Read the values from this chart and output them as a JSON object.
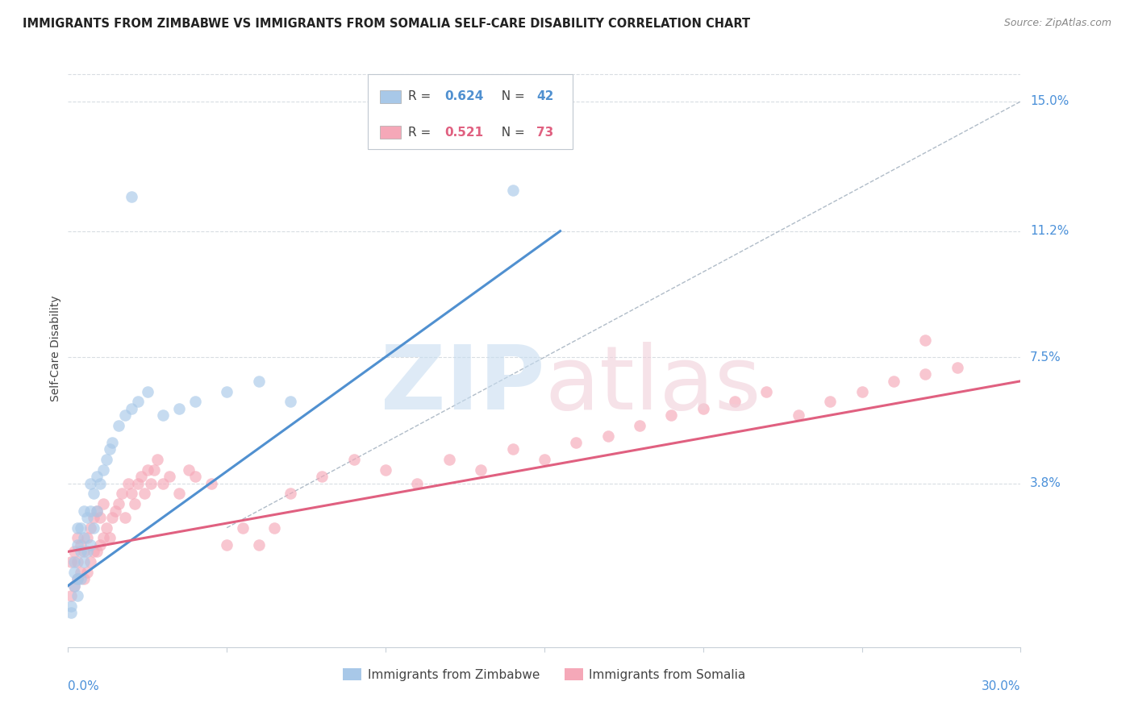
{
  "title": "IMMIGRANTS FROM ZIMBABWE VS IMMIGRANTS FROM SOMALIA SELF-CARE DISABILITY CORRELATION CHART",
  "source": "Source: ZipAtlas.com",
  "ylabel": "Self-Care Disability",
  "ytick_labels": [
    "3.8%",
    "7.5%",
    "11.2%",
    "15.0%"
  ],
  "ytick_values": [
    0.038,
    0.075,
    0.112,
    0.15
  ],
  "xlim": [
    0.0,
    0.3
  ],
  "ylim": [
    -0.01,
    0.165
  ],
  "zimbabwe_R": 0.624,
  "zimbabwe_N": 42,
  "somalia_R": 0.521,
  "somalia_N": 73,
  "zimbabwe_color": "#a8c8e8",
  "somalia_color": "#f5a8b8",
  "zimbabwe_line_color": "#5090d0",
  "somalia_line_color": "#e06080",
  "ref_line_color": "#b0bcc8",
  "background_color": "#ffffff",
  "grid_color": "#d8dde2",
  "title_color": "#222222",
  "source_color": "#888888",
  "axis_label_color": "#4a90d9",
  "zimbabwe_x": [
    0.001,
    0.001,
    0.002,
    0.002,
    0.002,
    0.003,
    0.003,
    0.003,
    0.003,
    0.004,
    0.004,
    0.004,
    0.005,
    0.005,
    0.005,
    0.006,
    0.006,
    0.007,
    0.007,
    0.007,
    0.008,
    0.008,
    0.009,
    0.009,
    0.01,
    0.011,
    0.012,
    0.013,
    0.014,
    0.016,
    0.018,
    0.02,
    0.022,
    0.025,
    0.03,
    0.035,
    0.04,
    0.05,
    0.06,
    0.07,
    0.02,
    0.14
  ],
  "zimbabwe_y": [
    0.0,
    0.002,
    0.008,
    0.012,
    0.015,
    0.005,
    0.01,
    0.02,
    0.025,
    0.01,
    0.018,
    0.025,
    0.015,
    0.022,
    0.03,
    0.018,
    0.028,
    0.02,
    0.03,
    0.038,
    0.025,
    0.035,
    0.03,
    0.04,
    0.038,
    0.042,
    0.045,
    0.048,
    0.05,
    0.055,
    0.058,
    0.06,
    0.062,
    0.065,
    0.058,
    0.06,
    0.062,
    0.065,
    0.068,
    0.062,
    0.122,
    0.124
  ],
  "somalia_x": [
    0.001,
    0.001,
    0.002,
    0.002,
    0.003,
    0.003,
    0.003,
    0.004,
    0.004,
    0.005,
    0.005,
    0.006,
    0.006,
    0.007,
    0.007,
    0.008,
    0.008,
    0.009,
    0.009,
    0.01,
    0.01,
    0.011,
    0.011,
    0.012,
    0.013,
    0.014,
    0.015,
    0.016,
    0.017,
    0.018,
    0.019,
    0.02,
    0.021,
    0.022,
    0.023,
    0.024,
    0.025,
    0.026,
    0.027,
    0.028,
    0.03,
    0.032,
    0.035,
    0.038,
    0.04,
    0.045,
    0.05,
    0.055,
    0.06,
    0.065,
    0.07,
    0.08,
    0.09,
    0.1,
    0.11,
    0.12,
    0.13,
    0.14,
    0.15,
    0.16,
    0.17,
    0.18,
    0.19,
    0.2,
    0.21,
    0.22,
    0.23,
    0.24,
    0.25,
    0.26,
    0.27,
    0.28,
    0.27
  ],
  "somalia_y": [
    0.005,
    0.015,
    0.008,
    0.018,
    0.01,
    0.015,
    0.022,
    0.012,
    0.02,
    0.01,
    0.018,
    0.012,
    0.022,
    0.015,
    0.025,
    0.018,
    0.028,
    0.018,
    0.03,
    0.02,
    0.028,
    0.022,
    0.032,
    0.025,
    0.022,
    0.028,
    0.03,
    0.032,
    0.035,
    0.028,
    0.038,
    0.035,
    0.032,
    0.038,
    0.04,
    0.035,
    0.042,
    0.038,
    0.042,
    0.045,
    0.038,
    0.04,
    0.035,
    0.042,
    0.04,
    0.038,
    0.02,
    0.025,
    0.02,
    0.025,
    0.035,
    0.04,
    0.045,
    0.042,
    0.038,
    0.045,
    0.042,
    0.048,
    0.045,
    0.05,
    0.052,
    0.055,
    0.058,
    0.06,
    0.062,
    0.065,
    0.058,
    0.062,
    0.065,
    0.068,
    0.07,
    0.072,
    0.08
  ],
  "zimbabwe_line_x": [
    0.0,
    0.155
  ],
  "zimbabwe_line_y": [
    0.008,
    0.112
  ],
  "somalia_line_x": [
    0.0,
    0.3
  ],
  "somalia_line_y": [
    0.018,
    0.068
  ]
}
